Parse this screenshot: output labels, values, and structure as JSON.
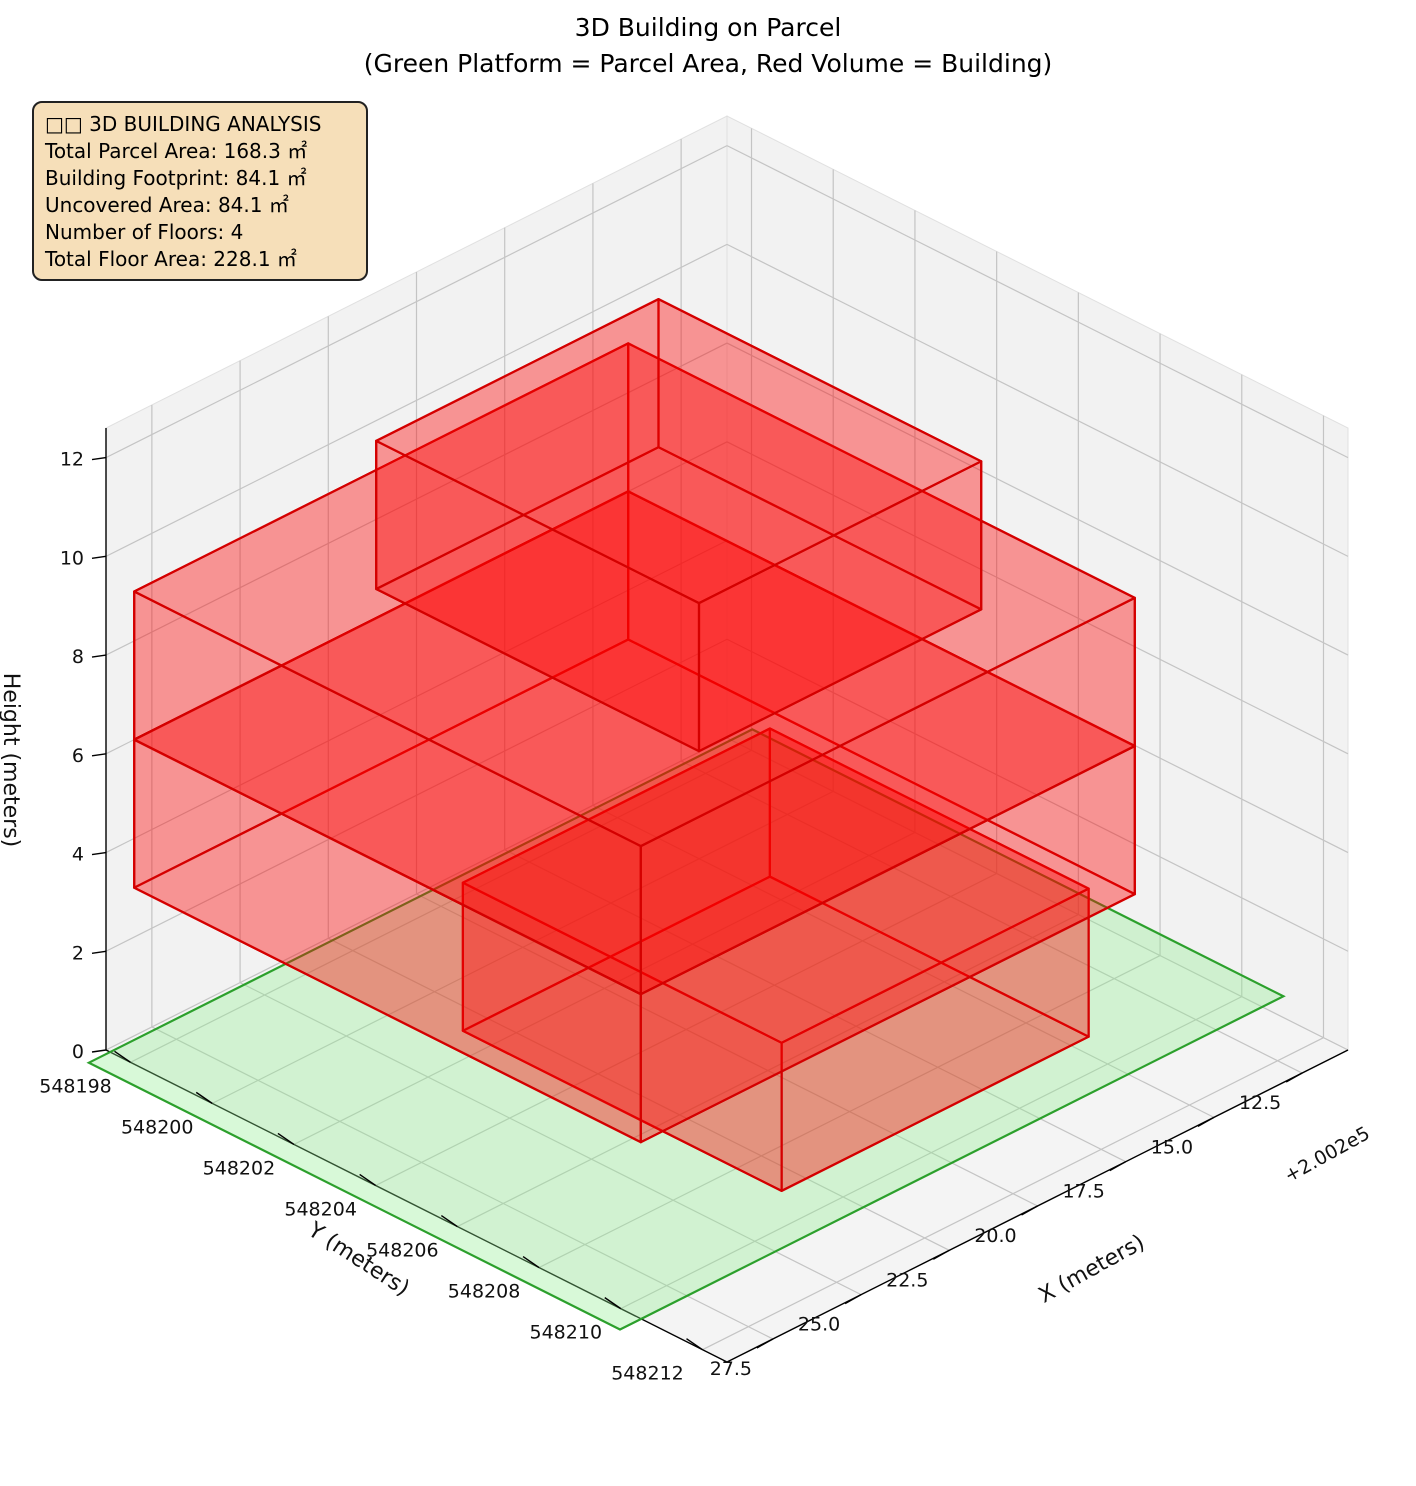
{
  "chart_data": {
    "type": "3d-box",
    "title_line1": "3D Building on Parcel",
    "title_line2": "(Green Platform = Parcel Area, Red Volume = Building)",
    "xlabel": "X (meters)",
    "ylabel": "Y (meters)",
    "zlabel": "Height (meters)",
    "x_offset_label": "+2.002e5",
    "x_ticks": [
      "12.5",
      "15.0",
      "17.5",
      "20.0",
      "22.5",
      "25.0",
      "27.5"
    ],
    "y_ticks": [
      "548198",
      "548200",
      "548202",
      "548204",
      "548206",
      "548208",
      "548210",
      "548212"
    ],
    "z_ticks": [
      "0",
      "2",
      "4",
      "6",
      "8",
      "10",
      "12"
    ],
    "parcel": {
      "x": [
        200210.6,
        200229.4
      ],
      "y": [
        548197.5,
        548210.5
      ],
      "z": 0,
      "color": "#90ee90",
      "edge": "#2ca02c"
    },
    "floors": [
      {
        "level": 1,
        "x": [
          200214.5,
          200223.2
        ],
        "y": [
          548201.3,
          548209.1
        ],
        "z": [
          0,
          3
        ],
        "color": "#ff0000"
      },
      {
        "level": 2,
        "x": [
          200214.0,
          200228.0
        ],
        "y": [
          548197.4,
          548209.8
        ],
        "z": [
          3,
          6
        ],
        "color": "#ff0000"
      },
      {
        "level": 3,
        "x": [
          200214.0,
          200228.0
        ],
        "y": [
          548197.4,
          548209.8
        ],
        "z": [
          6,
          9
        ],
        "color": "#ff0000"
      },
      {
        "level": 4,
        "x": [
          200216.5,
          200224.5
        ],
        "y": [
          548200.3,
          548208.2
        ],
        "z": [
          9,
          12
        ],
        "color": "#ff0000"
      }
    ]
  },
  "info": {
    "heading": "□□ 3D BUILDING ANALYSIS",
    "lines": [
      "Total Parcel Area: 168.3 ㎡",
      "Building Footprint: 84.1 ㎡",
      "Uncovered Area: 84.1 ㎡",
      "Number of Floors: 4",
      "Total Floor Area: 228.1 ㎡"
    ]
  }
}
